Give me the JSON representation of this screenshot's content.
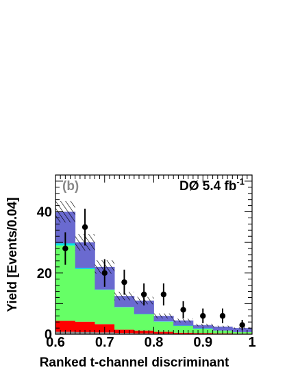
{
  "chart_data": {
    "type": "bar",
    "xlabel": "Ranked t-channel discriminant",
    "ylabel": "Yield [Events/0.04]",
    "xlim": [
      0.6,
      1.0
    ],
    "ylim": [
      0,
      52
    ],
    "x_ticks": [
      "0.6",
      "0.7",
      "0.8",
      "0.9",
      "1"
    ],
    "y_ticks": [
      "0",
      "20",
      "40"
    ],
    "bin_edges": [
      0.6,
      0.64,
      0.68,
      0.72,
      0.76,
      0.8,
      0.84,
      0.88,
      0.92,
      0.96,
      1.0
    ],
    "panel_label": "(b)",
    "experiment_label": "DØ  5.4 fb",
    "experiment_superscript": "-1",
    "stack": [
      {
        "key": "gray",
        "color": "#8c8c8c",
        "values": [
          0.8,
          0.7,
          0.6,
          0.4,
          0.3,
          0.2,
          0.1,
          0.1,
          0.1,
          0.1
        ]
      },
      {
        "key": "red",
        "color": "#ff0000",
        "values": [
          3.6,
          3.4,
          2.7,
          1.1,
          0.9,
          0.6,
          0.4,
          0.3,
          0.2,
          0.1
        ]
      },
      {
        "key": "green",
        "color": "#66ff66",
        "values": [
          24.6,
          17.2,
          11.2,
          7.3,
          5.3,
          3.3,
          2.2,
          1.4,
          0.9,
          0.5
        ]
      },
      {
        "key": "cyan",
        "color": "#00e5e5",
        "values": [
          0.7,
          0.3,
          0.1,
          0.1,
          0.1,
          0.1,
          0.1,
          0.1,
          0.0,
          0.0
        ]
      },
      {
        "key": "blue",
        "color": "#6a6ad0",
        "values": [
          10.3,
          8.4,
          7.4,
          3.6,
          4.4,
          1.8,
          1.7,
          1.1,
          1.3,
          1.3
        ]
      }
    ],
    "uncertainty_band": {
      "center": [
        40,
        30,
        22,
        12.5,
        11,
        6,
        4.5,
        3,
        2.5,
        2
      ],
      "half_width": [
        3.5,
        2.7,
        2.2,
        1.4,
        1.2,
        0.8,
        0.6,
        0.4,
        0.3,
        0.3
      ]
    },
    "data_points": {
      "x": [
        0.62,
        0.66,
        0.7,
        0.74,
        0.78,
        0.82,
        0.86,
        0.9,
        0.94,
        0.98
      ],
      "y": [
        28,
        35,
        20,
        17,
        13,
        13,
        8,
        6,
        6,
        3
      ],
      "err": [
        5.3,
        6.0,
        4.5,
        4.1,
        3.6,
        3.6,
        2.8,
        2.4,
        2.4,
        1.7
      ]
    }
  }
}
